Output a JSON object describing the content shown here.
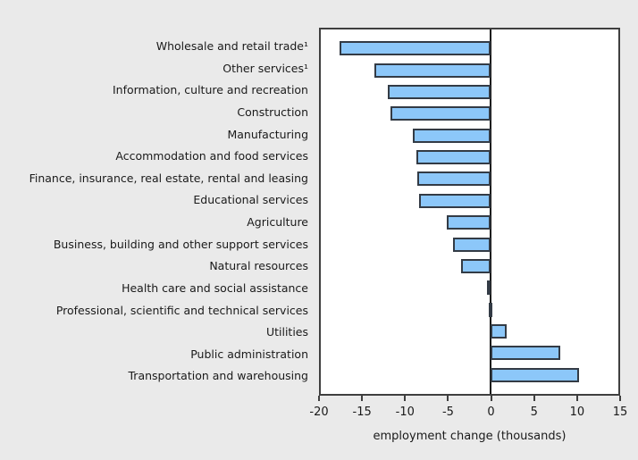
{
  "chart_data": {
    "type": "bar",
    "orientation": "horizontal",
    "title": "",
    "xlabel": "employment change (thousands)",
    "xlim": [
      -20,
      15
    ],
    "xticks": [
      -20,
      -15,
      -10,
      -5,
      0,
      5,
      10,
      15
    ],
    "grid": false,
    "legend": false,
    "categories": [
      "Wholesale and retail trade¹",
      "Other services¹",
      "Information, culture and recreation",
      "Construction",
      "Manufacturing",
      "Accommodation and food services",
      "Finance, insurance, real estate, rental and leasing",
      "Educational services",
      "Agriculture",
      "Business, building and other support services",
      "Natural resources",
      "Health care and social assistance",
      "Professional, scientific and technical services",
      "Utilities",
      "Public administration",
      "Transportation and warehousing"
    ],
    "values": [
      -17.8,
      -13.7,
      -12.1,
      -11.8,
      -9.2,
      -8.8,
      -8.7,
      -8.4,
      -5.2,
      -4.4,
      -3.5,
      -0.4,
      -0.2,
      1.9,
      8.2,
      10.4
    ],
    "colors": {
      "bar_fill": "#8CC7F9",
      "bar_border": "#333B45",
      "plot_background": "#FFFFFF",
      "page_background": "#EAEAEA",
      "frame": "#3F3F3F",
      "zero_line": "#161616",
      "text": "#1A1A1A"
    }
  }
}
